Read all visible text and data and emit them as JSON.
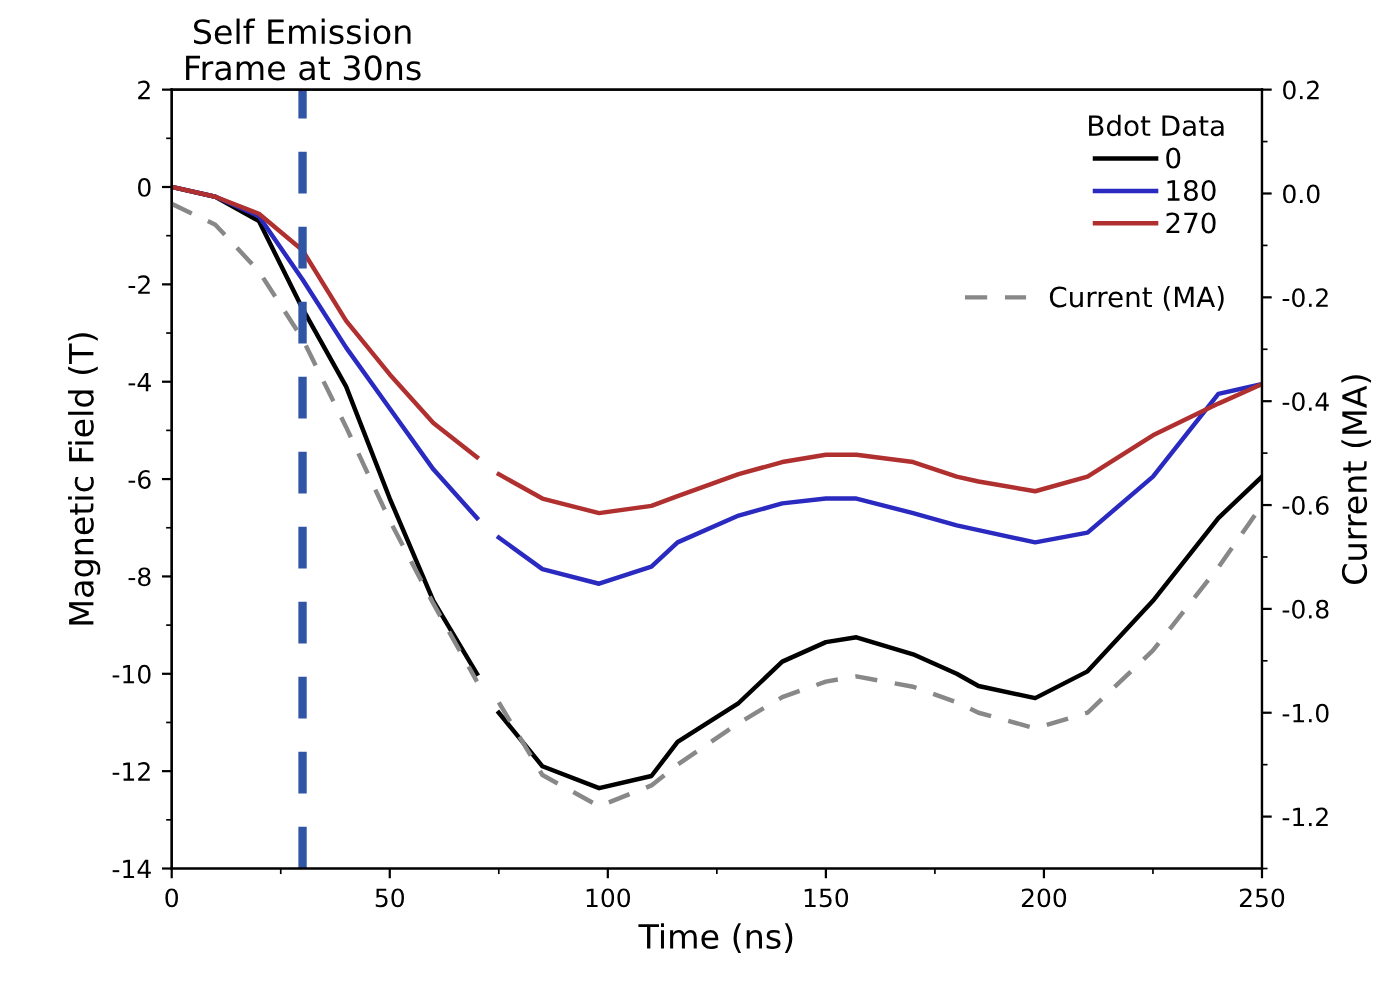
{
  "chart_data": {
    "type": "line",
    "xlabel": "Time (ns)",
    "ylabel": "Magnetic Field (T)",
    "y2label": "Current (MA)",
    "legend_title": "Bdot Data",
    "legend": "top right",
    "grid": false,
    "line_style": "solid",
    "marker": "none",
    "xlim": [
      0,
      250
    ],
    "xticks": [
      0,
      50,
      100,
      150,
      200,
      250
    ],
    "ylim": [
      -14,
      2
    ],
    "yticks": [
      -14,
      -12,
      -10,
      -8,
      -6,
      -4,
      -2,
      0,
      2
    ],
    "y2lim": [
      -1.3,
      0.2
    ],
    "y2ticks": [
      {
        "value": -1.2,
        "label": "-1.2"
      },
      {
        "value": -1.0,
        "label": "-1.0"
      },
      {
        "value": -0.8,
        "label": "-0.8"
      },
      {
        "value": -0.6,
        "label": "-0.6"
      },
      {
        "value": -0.4,
        "label": "-0.4"
      },
      {
        "value": -0.2,
        "label": "-0.2"
      },
      {
        "value": 0.0,
        "label": "0.0"
      },
      {
        "value": 0.2,
        "label": "0.2"
      }
    ],
    "x": [
      0,
      10,
      20,
      30,
      40,
      50,
      60,
      70,
      72,
      75,
      85,
      98,
      110,
      116,
      130,
      140,
      150,
      157,
      170,
      180,
      185,
      198,
      210,
      225,
      240,
      250
    ],
    "series": [
      {
        "name": "0",
        "color": "#000000",
        "values": [
          0,
          -0.2,
          -0.7,
          -2.5,
          -4.1,
          -6.4,
          -8.5,
          -10.0,
          null,
          -10.8,
          -11.9,
          -12.35,
          -12.1,
          -11.4,
          -10.6,
          -9.75,
          -9.35,
          -9.25,
          -9.6,
          -10.0,
          -10.25,
          -10.5,
          -9.95,
          -8.5,
          -6.8,
          -5.95
        ]
      },
      {
        "name": "180",
        "color": "#2a2ac0",
        "values": [
          0,
          -0.2,
          -0.6,
          -1.9,
          -3.3,
          -4.55,
          -5.8,
          -6.8,
          null,
          -7.2,
          -7.85,
          -8.15,
          -7.8,
          -7.3,
          -6.75,
          -6.5,
          -6.4,
          -6.4,
          -6.7,
          -6.95,
          -7.05,
          -7.3,
          -7.1,
          -5.95,
          -4.25,
          -4.05
        ]
      },
      {
        "name": "270",
        "color": "#b03030",
        "values": [
          0,
          -0.2,
          -0.55,
          -1.3,
          -2.75,
          -3.85,
          -4.85,
          -5.55,
          null,
          -5.9,
          -6.4,
          -6.7,
          -6.55,
          -6.35,
          -5.9,
          -5.65,
          -5.5,
          -5.5,
          -5.65,
          -5.95,
          -6.05,
          -6.25,
          -5.95,
          -5.1,
          -4.45,
          -4.05
        ]
      },
      {
        "name": "Current (MA)",
        "color": "#888888",
        "axis": "y2",
        "line_style": "dashed",
        "values": [
          -0.02,
          -0.06,
          -0.15,
          -0.28,
          -0.45,
          -0.63,
          -0.79,
          -0.94,
          null,
          -0.98,
          -1.12,
          -1.18,
          -1.14,
          -1.1,
          -1.02,
          -0.97,
          -0.94,
          -0.93,
          -0.95,
          -0.98,
          -1.0,
          -1.03,
          -1.0,
          -0.88,
          -0.72,
          -0.6
        ]
      }
    ],
    "ref_lines": [
      {
        "axis": "x",
        "value": 30,
        "label": "Self Emission\nFrame at 30ns",
        "color": "#2f55a4",
        "line_style": "dashed"
      }
    ]
  }
}
